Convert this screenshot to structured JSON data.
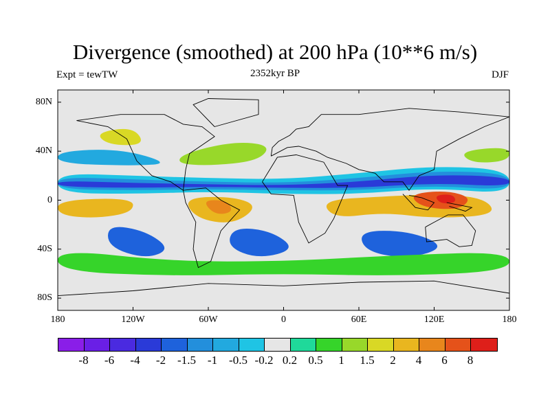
{
  "title": "Divergence (smoothed) at 200 hPa (10**6 m/s)",
  "subtitle_left": "Expt = tewTW",
  "subtitle_center": "2352kyr BP",
  "subtitle_right": "DJF",
  "map": {
    "lon_range": [
      -180,
      180
    ],
    "lat_range": [
      -90,
      90
    ],
    "y_tick_labels": [
      {
        "lat": 80,
        "label": "80N"
      },
      {
        "lat": 40,
        "label": "40N"
      },
      {
        "lat": 0,
        "label": "0"
      },
      {
        "lat": -40,
        "label": "40S"
      },
      {
        "lat": -80,
        "label": "80S"
      }
    ],
    "x_tick_labels": [
      {
        "lon": -180,
        "label": "180"
      },
      {
        "lon": -120,
        "label": "120W"
      },
      {
        "lon": -60,
        "label": "60W"
      },
      {
        "lon": 0,
        "label": "0"
      },
      {
        "lon": 60,
        "label": "60E"
      },
      {
        "lon": 120,
        "label": "120E"
      },
      {
        "lon": 180,
        "label": "180"
      }
    ],
    "background_color": "#e6e6e6"
  },
  "colorbar": {
    "colors": [
      "#8a1ee8",
      "#6a1fe6",
      "#4a2ae0",
      "#2a3ad8",
      "#1e62dc",
      "#238fdc",
      "#22a9df",
      "#1fc4e4",
      "#e6e6e6",
      "#1fd99a",
      "#36d42a",
      "#98d82a",
      "#d9d825",
      "#e9b61f",
      "#e8861c",
      "#e5521a",
      "#de1f1a"
    ],
    "labels": [
      "-8",
      "-6",
      "-4",
      "-2",
      "-1.5",
      "-1",
      "-0.5",
      "-0.2",
      "0.2",
      "0.5",
      "1",
      "1.5",
      "2",
      "4",
      "6",
      "8"
    ],
    "levels": [
      -8,
      -6,
      -4,
      -2,
      -1.5,
      -1,
      -0.5,
      -0.2,
      0.2,
      0.5,
      1,
      1.5,
      2,
      4,
      6,
      8
    ]
  }
}
